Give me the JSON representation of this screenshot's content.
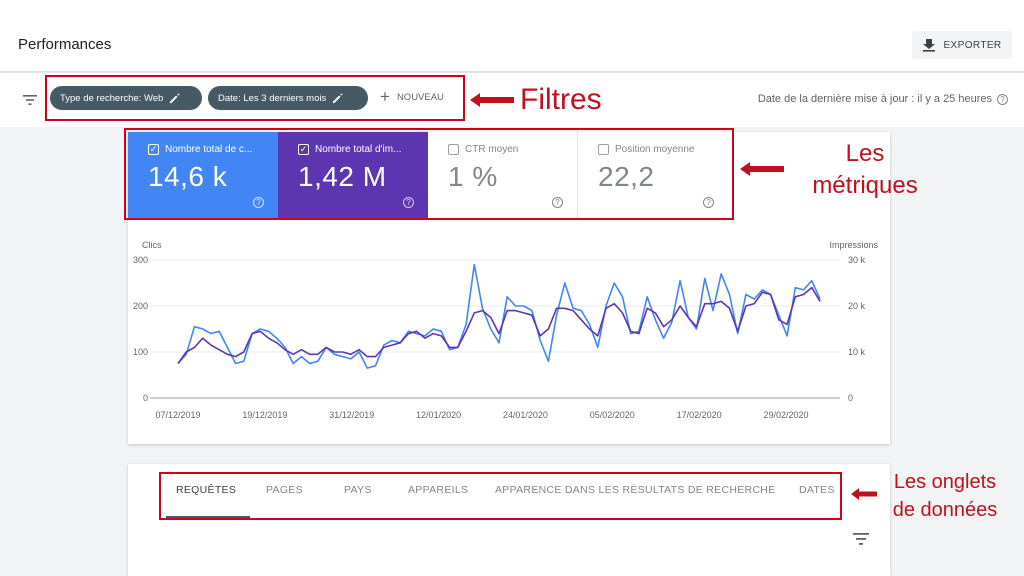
{
  "header": {
    "title": "Performances",
    "export_label": "EXPORTER"
  },
  "filters": {
    "chip_search_type": "Type de recherche: Web",
    "chip_date": "Date: Les 3 derniers mois",
    "new_label": "NOUVEAU",
    "last_update": "Date de la dernière mise à jour : il y a 25 heures"
  },
  "metrics": [
    {
      "label": "Nombre total de c...",
      "value": "14,6 k",
      "checked": true,
      "color": "#4285f4"
    },
    {
      "label": "Nombre total d'im...",
      "value": "1,42 M",
      "checked": true,
      "color": "#5e35b1"
    },
    {
      "label": "CTR moyen",
      "value": "1 %",
      "checked": false
    },
    {
      "label": "Position moyenne",
      "value": "22,2",
      "checked": false
    }
  ],
  "chart_data": {
    "type": "line",
    "left_axis_label": "Clics",
    "right_axis_label": "Impressions",
    "left_ticks": [
      "300",
      "200",
      "100",
      "0"
    ],
    "right_ticks": [
      "30 k",
      "20 k",
      "10 k",
      "0"
    ],
    "ylim_left": [
      0,
      300
    ],
    "ylim_right": [
      0,
      30000
    ],
    "x_labels": [
      "07/12/2019",
      "19/12/2019",
      "31/12/2019",
      "12/01/2020",
      "24/01/2020",
      "05/02/2020",
      "17/02/2020",
      "29/02/2020"
    ],
    "grid": true,
    "series": [
      {
        "name": "Clics",
        "color": "#4285f4",
        "axis": "left",
        "values": [
          75,
          95,
          155,
          150,
          140,
          145,
          110,
          75,
          80,
          140,
          150,
          145,
          130,
          110,
          75,
          90,
          75,
          80,
          110,
          95,
          90,
          85,
          100,
          65,
          70,
          115,
          125,
          120,
          145,
          140,
          135,
          150,
          145,
          105,
          110,
          160,
          290,
          195,
          150,
          120,
          220,
          200,
          200,
          190,
          125,
          80,
          180,
          250,
          195,
          190,
          160,
          110,
          200,
          250,
          220,
          140,
          145,
          220,
          170,
          130,
          165,
          255,
          175,
          150,
          260,
          190,
          270,
          225,
          140,
          225,
          215,
          235,
          225,
          180,
          135,
          240,
          235,
          255,
          215
        ]
      },
      {
        "name": "Impressions",
        "color": "#5e35b1",
        "axis": "right",
        "values": [
          7500,
          10000,
          11000,
          13000,
          11500,
          10500,
          9500,
          9000,
          10000,
          14000,
          14500,
          13000,
          12000,
          10500,
          9500,
          10500,
          9500,
          9500,
          11000,
          10000,
          10000,
          9500,
          10500,
          9000,
          9000,
          11000,
          11500,
          12000,
          14000,
          14500,
          13000,
          14000,
          13500,
          11000,
          11000,
          14500,
          18500,
          19000,
          17500,
          14000,
          19000,
          19000,
          18500,
          18000,
          13500,
          15000,
          19500,
          19500,
          19000,
          17000,
          15000,
          13500,
          19500,
          20500,
          18500,
          14500,
          14000,
          19500,
          18500,
          15500,
          17000,
          20000,
          17500,
          15500,
          20500,
          20500,
          21000,
          19500,
          14500,
          20000,
          20500,
          23000,
          22500,
          17000,
          16000,
          22000,
          22500,
          24000,
          21000
        ]
      }
    ]
  },
  "tabs": {
    "items": [
      "REQUÊTES",
      "PAGES",
      "PAYS",
      "APPAREILS",
      "APPARENCE DANS LES RÉSULTATS DE RECHERCHE",
      "DATES"
    ]
  },
  "annotations": {
    "filters": "Filtres",
    "metrics_line1": "Les",
    "metrics_line2": "métriques",
    "tabs_line1": "Les onglets",
    "tabs_line2": "de données",
    "color": "#c0101e"
  }
}
